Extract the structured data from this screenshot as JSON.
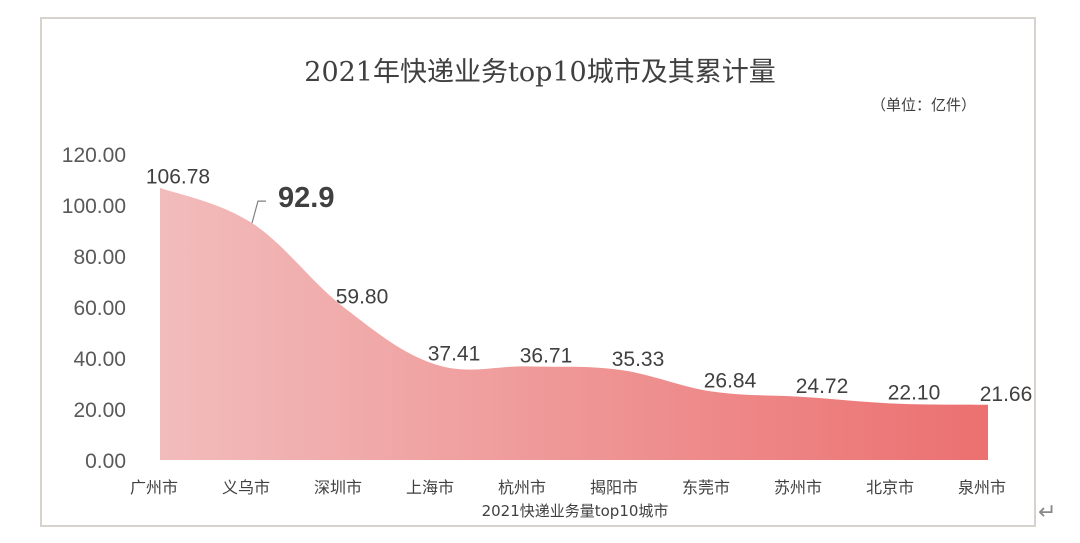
{
  "chart_data": {
    "type": "area",
    "title": "2021年快递业务top10城市及其累计量",
    "unit_note": "（单位：亿件）",
    "xlabel": "2021快递业务量top10城市",
    "ylabel": "",
    "categories": [
      "广州市",
      "义乌市",
      "深圳市",
      "上海市",
      "杭州市",
      "揭阳市",
      "东莞市",
      "苏州市",
      "北京市",
      "泉州市"
    ],
    "values": [
      106.78,
      92.9,
      59.8,
      37.41,
      36.71,
      35.33,
      26.84,
      24.72,
      22.1,
      21.66
    ],
    "data_labels": [
      "106.78",
      "92.9",
      "59.80",
      "37.41",
      "36.71",
      "35.33",
      "26.84",
      "24.72",
      "22.10",
      "21.66"
    ],
    "ylim": [
      0,
      120
    ],
    "yticks": [
      "0.00",
      "20.00",
      "40.00",
      "60.00",
      "80.00",
      "100.00",
      "120.00"
    ],
    "grid": false,
    "legend": "none",
    "colors": {
      "fill_start": "#f2bcbc",
      "fill_end": "#ec7070",
      "text": "#404040"
    }
  }
}
